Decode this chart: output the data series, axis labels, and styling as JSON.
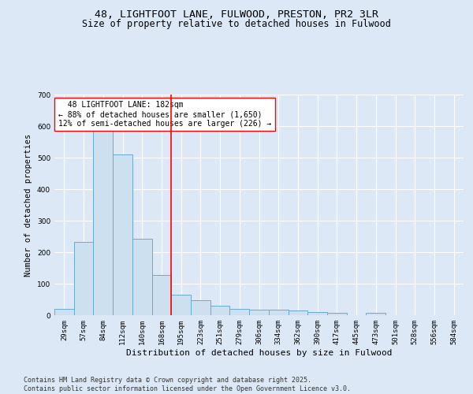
{
  "title1": "48, LIGHTFOOT LANE, FULWOOD, PRESTON, PR2 3LR",
  "title2": "Size of property relative to detached houses in Fulwood",
  "xlabel": "Distribution of detached houses by size in Fulwood",
  "ylabel": "Number of detached properties",
  "categories": [
    "29sqm",
    "57sqm",
    "84sqm",
    "112sqm",
    "140sqm",
    "168sqm",
    "195sqm",
    "223sqm",
    "251sqm",
    "279sqm",
    "306sqm",
    "334sqm",
    "362sqm",
    "390sqm",
    "417sqm",
    "445sqm",
    "473sqm",
    "501sqm",
    "528sqm",
    "556sqm",
    "584sqm"
  ],
  "values": [
    20,
    232,
    593,
    510,
    243,
    128,
    65,
    47,
    30,
    20,
    18,
    18,
    15,
    10,
    8,
    0,
    8,
    0,
    0,
    0,
    0
  ],
  "bar_color": "#cce0f0",
  "bar_edge_color": "#6aaad4",
  "vline_x": 5.5,
  "vline_color": "red",
  "annotation_text": "  48 LIGHTFOOT LANE: 182sqm  \n← 88% of detached houses are smaller (1,650)\n12% of semi-detached houses are larger (226) →",
  "annotation_box_color": "white",
  "annotation_box_edge": "red",
  "ylim": [
    0,
    700
  ],
  "yticks": [
    0,
    100,
    200,
    300,
    400,
    500,
    600,
    700
  ],
  "bg_color": "#dce8f5",
  "plot_bg_color": "#dce8f5",
  "footer": "Contains HM Land Registry data © Crown copyright and database right 2025.\nContains public sector information licensed under the Open Government Licence v3.0.",
  "title1_fontsize": 9.5,
  "title2_fontsize": 8.5,
  "xlabel_fontsize": 8,
  "ylabel_fontsize": 7.5,
  "annotation_fontsize": 7,
  "footer_fontsize": 6,
  "tick_fontsize": 6.5
}
